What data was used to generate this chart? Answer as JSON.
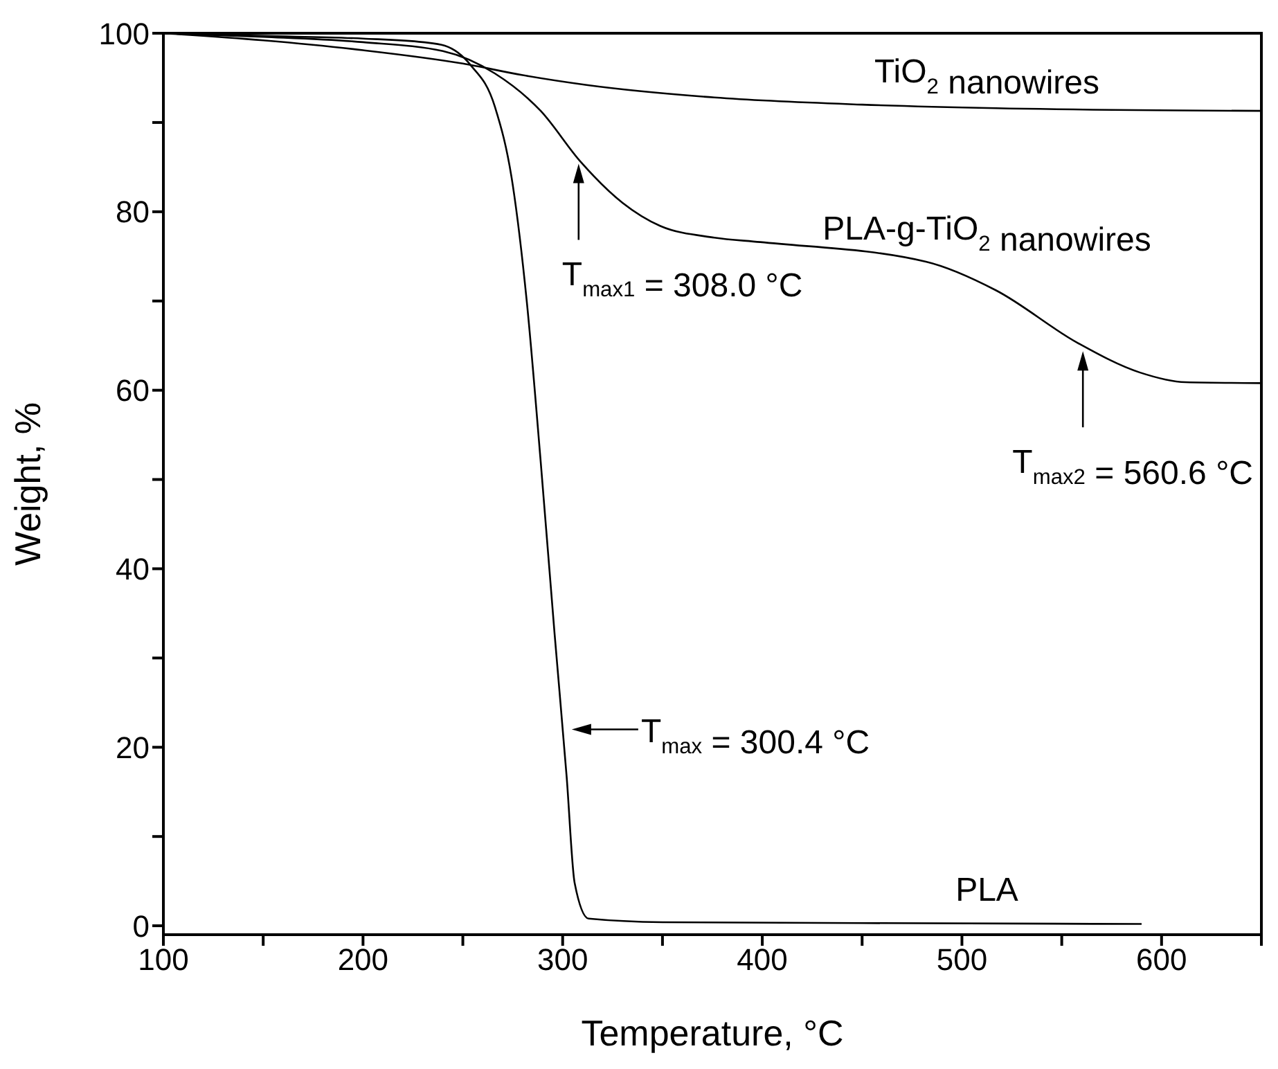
{
  "chart_data": {
    "type": "line",
    "xlabel": "Temperature, °C",
    "ylabel": "Weight, %",
    "xlim": [
      100,
      650
    ],
    "ylim": [
      -1,
      100
    ],
    "xticks": [
      100,
      {
        "value": 150,
        "label": null
      },
      200,
      {
        "value": 250,
        "label": null
      },
      300,
      {
        "value": 350,
        "label": null
      },
      400,
      {
        "value": 450,
        "label": null
      },
      500,
      {
        "value": 550,
        "label": null
      },
      600,
      {
        "value": 650,
        "label": null
      }
    ],
    "yticks": [
      0,
      {
        "value": 10,
        "label": null
      },
      20,
      {
        "value": 30,
        "label": null
      },
      40,
      {
        "value": 50,
        "label": null
      },
      60,
      {
        "value": 70,
        "label": null
      },
      80,
      {
        "value": 90,
        "label": null
      },
      100
    ],
    "grid": false,
    "legend": false,
    "marker": "none",
    "line_style": "solid",
    "series": [
      {
        "name": "TiO$_{2}$ nanowires",
        "color": "#000000",
        "x": [
          100,
          150,
          200,
          250,
          280,
          312,
          376,
          450,
          517,
          650
        ],
        "values": [
          100,
          99.2,
          98.1,
          96.6,
          95.3,
          94.2,
          92.8,
          92.0,
          91.6,
          91.3
        ]
      },
      {
        "name": "PLA-g-TiO$_{2}$ nanowires",
        "color": "#000000",
        "x": [
          100,
          150,
          200,
          240,
          266,
          289,
          309,
          330,
          349,
          376,
          399,
          482,
          517,
          558,
          589,
          612,
          650
        ],
        "values": [
          100,
          99.6,
          99.0,
          98.0,
          95.5,
          91.3,
          85.6,
          81.0,
          78.4,
          77.1,
          76.6,
          74.4,
          71.2,
          65.3,
          62.0,
          60.9,
          60.8
        ]
      },
      {
        "name": "PLA",
        "color": "#000000",
        "x": [
          100,
          150,
          200,
          230,
          241,
          254,
          266,
          275,
          282,
          289,
          296,
          302,
          306,
          313,
          350,
          450,
          590
        ],
        "values": [
          100,
          99.7,
          99.4,
          99.0,
          98.6,
          96.4,
          91.8,
          83.0,
          70.0,
          52.0,
          32.6,
          16.7,
          4.8,
          0.8,
          0.4,
          0.3,
          0.2
        ]
      }
    ],
    "annotations": [
      {
        "text": "T$_{max1}$ = 308.0 °C",
        "x": 308.0,
        "y": 86
      },
      {
        "text": "T$_{max2}$ = 560.6 °C",
        "x": 560.6,
        "y": 65
      },
      {
        "text": "T$_{max}$ = 300.4 °C",
        "x": 300.4,
        "y": 22
      }
    ]
  }
}
